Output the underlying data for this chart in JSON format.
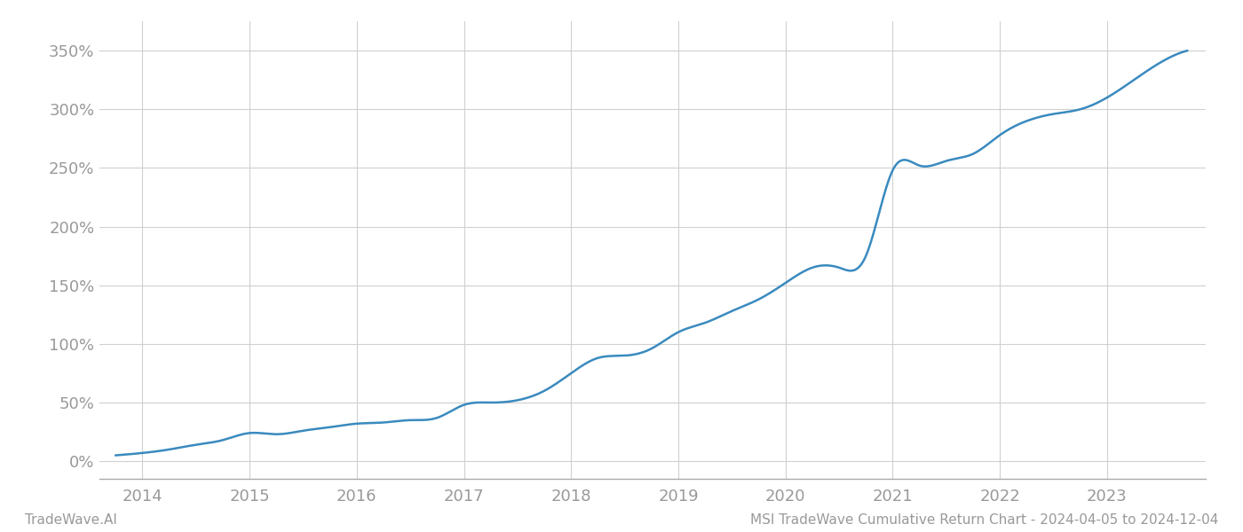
{
  "title": "",
  "footer_left": "TradeWave.AI",
  "footer_right": "MSI TradeWave Cumulative Return Chart - 2024-04-05 to 2024-12-04",
  "line_color": "#3a8abf",
  "background_color": "#ffffff",
  "grid_color": "#d0d0d0",
  "x_years": [
    2014,
    2015,
    2016,
    2017,
    2018,
    2019,
    2020,
    2021,
    2022,
    2023
  ],
  "x_data": [
    2013.75,
    2014.0,
    2014.25,
    2014.5,
    2014.75,
    2015.0,
    2015.25,
    2015.5,
    2015.75,
    2016.0,
    2016.25,
    2016.5,
    2016.75,
    2017.0,
    2017.25,
    2017.5,
    2017.75,
    2018.0,
    2018.25,
    2018.5,
    2018.75,
    2019.0,
    2019.25,
    2019.5,
    2019.75,
    2020.0,
    2020.25,
    2020.5,
    2020.75,
    2021.0,
    2021.25,
    2021.5,
    2021.75,
    2022.0,
    2022.25,
    2022.5,
    2022.75,
    2023.0,
    2023.25,
    2023.5,
    2023.75
  ],
  "y_data": [
    5,
    7,
    10,
    14,
    18,
    24,
    23,
    26,
    29,
    32,
    33,
    35,
    37,
    48,
    50,
    52,
    60,
    75,
    88,
    90,
    96,
    110,
    118,
    128,
    138,
    152,
    165,
    165,
    175,
    248,
    252,
    256,
    262,
    278,
    290,
    296,
    300,
    310,
    325,
    340,
    350
  ],
  "yticks": [
    0,
    50,
    100,
    150,
    200,
    250,
    300,
    350
  ],
  "ylim": [
    -15,
    375
  ],
  "xlim": [
    2013.6,
    2023.92
  ],
  "axis_color": "#aaaaaa",
  "tick_color": "#999999",
  "footer_color": "#999999",
  "line_width": 1.8,
  "tick_fontsize": 13,
  "footer_fontsize": 11
}
